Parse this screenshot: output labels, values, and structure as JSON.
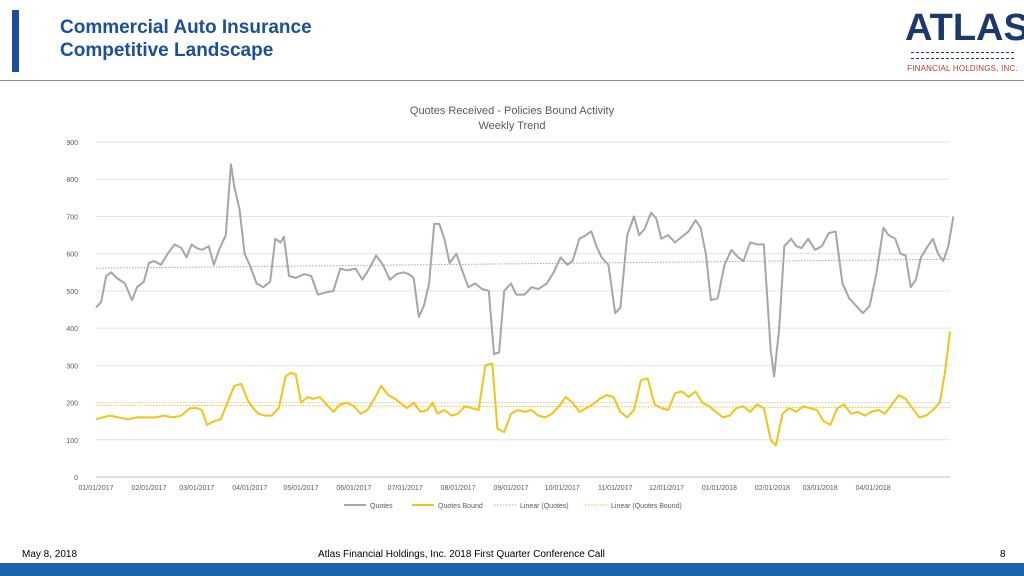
{
  "header": {
    "title_line1": "Commercial Auto Insurance",
    "title_line2": "Competitive Landscape",
    "logo_text": "ATLAS",
    "logo_subtitle": "FINANCIAL HOLDINGS, INC."
  },
  "footer": {
    "date": "May 8, 2018",
    "center": "Atlas Financial Holdings, Inc. 2018 First Quarter Conference Call",
    "page": "8"
  },
  "colors": {
    "accent": "#1b4f9c",
    "quotes": "#a6a6a6",
    "bound": "#f2c318"
  },
  "chart_data": {
    "type": "line",
    "title": "Quotes Received - Policies Bound Activity",
    "subtitle": "Weekly Trend",
    "ylim": [
      0,
      900
    ],
    "yticks": [
      "0",
      "100",
      "200",
      "300",
      "400",
      "500",
      "600",
      "700",
      "800",
      "900"
    ],
    "xlim": [
      "2017-01-01",
      "2018-05-16"
    ],
    "xticks": [
      "01/01/2017",
      "02/01/2017",
      "03/01/2017",
      "04/01/2017",
      "05/01/2017",
      "06/01/2017",
      "07/01/2017",
      "08/01/2017",
      "09/01/2017",
      "10/01/2017",
      "11/01/2017",
      "12/01/2017",
      "01/01/2018",
      "02/01/2018",
      "03/01/2018",
      "04/01/2018"
    ],
    "grid": true,
    "legend_position": "bottom",
    "series": [
      {
        "name": "Quotes",
        "points": [
          [
            "2017-01-01",
            455
          ],
          [
            "2017-01-04",
            470
          ],
          [
            "2017-01-07",
            540
          ],
          [
            "2017-01-10",
            550
          ],
          [
            "2017-01-13",
            535
          ],
          [
            "2017-01-18",
            520
          ],
          [
            "2017-01-22",
            475
          ],
          [
            "2017-01-25",
            510
          ],
          [
            "2017-01-29",
            525
          ],
          [
            "2017-02-01",
            575
          ],
          [
            "2017-02-04",
            580
          ],
          [
            "2017-02-08",
            570
          ],
          [
            "2017-02-12",
            600
          ],
          [
            "2017-02-16",
            625
          ],
          [
            "2017-02-20",
            615
          ],
          [
            "2017-02-23",
            590
          ],
          [
            "2017-02-26",
            625
          ],
          [
            "2017-03-01",
            615
          ],
          [
            "2017-03-04",
            610
          ],
          [
            "2017-03-08",
            620
          ],
          [
            "2017-03-11",
            570
          ],
          [
            "2017-03-14",
            610
          ],
          [
            "2017-03-18",
            650
          ],
          [
            "2017-03-21",
            840
          ],
          [
            "2017-03-23",
            780
          ],
          [
            "2017-03-26",
            720
          ],
          [
            "2017-03-29",
            600
          ],
          [
            "2017-04-01",
            570
          ],
          [
            "2017-04-05",
            520
          ],
          [
            "2017-04-09",
            510
          ],
          [
            "2017-04-13",
            525
          ],
          [
            "2017-04-16",
            640
          ],
          [
            "2017-04-19",
            630
          ],
          [
            "2017-04-21",
            645
          ],
          [
            "2017-04-24",
            540
          ],
          [
            "2017-04-28",
            535
          ],
          [
            "2017-05-03",
            545
          ],
          [
            "2017-05-07",
            540
          ],
          [
            "2017-05-11",
            490
          ],
          [
            "2017-05-15",
            495
          ],
          [
            "2017-05-20",
            500
          ],
          [
            "2017-05-24",
            560
          ],
          [
            "2017-05-28",
            555
          ],
          [
            "2017-06-02",
            560
          ],
          [
            "2017-06-06",
            530
          ],
          [
            "2017-06-10",
            560
          ],
          [
            "2017-06-14",
            595
          ],
          [
            "2017-06-18",
            570
          ],
          [
            "2017-06-22",
            530
          ],
          [
            "2017-06-26",
            545
          ],
          [
            "2017-06-30",
            550
          ],
          [
            "2017-07-03",
            545
          ],
          [
            "2017-07-06",
            535
          ],
          [
            "2017-07-09",
            430
          ],
          [
            "2017-07-12",
            460
          ],
          [
            "2017-07-15",
            520
          ],
          [
            "2017-07-18",
            680
          ],
          [
            "2017-07-21",
            680
          ],
          [
            "2017-07-24",
            640
          ],
          [
            "2017-07-27",
            575
          ],
          [
            "2017-07-31",
            600
          ],
          [
            "2017-08-03",
            560
          ],
          [
            "2017-08-07",
            510
          ],
          [
            "2017-08-11",
            520
          ],
          [
            "2017-08-15",
            505
          ],
          [
            "2017-08-19",
            500
          ],
          [
            "2017-08-22",
            330
          ],
          [
            "2017-08-25",
            335
          ],
          [
            "2017-08-28",
            500
          ],
          [
            "2017-09-01",
            520
          ],
          [
            "2017-09-04",
            490
          ],
          [
            "2017-09-09",
            490
          ],
          [
            "2017-09-13",
            510
          ],
          [
            "2017-09-17",
            505
          ],
          [
            "2017-09-22",
            520
          ],
          [
            "2017-09-26",
            550
          ],
          [
            "2017-09-30",
            590
          ],
          [
            "2017-10-04",
            570
          ],
          [
            "2017-10-07",
            580
          ],
          [
            "2017-10-11",
            640
          ],
          [
            "2017-10-15",
            650
          ],
          [
            "2017-10-18",
            660
          ],
          [
            "2017-10-21",
            620
          ],
          [
            "2017-10-24",
            590
          ],
          [
            "2017-10-28",
            570
          ],
          [
            "2017-11-01",
            440
          ],
          [
            "2017-11-04",
            455
          ],
          [
            "2017-11-08",
            650
          ],
          [
            "2017-11-12",
            700
          ],
          [
            "2017-11-15",
            650
          ],
          [
            "2017-11-18",
            665
          ],
          [
            "2017-11-22",
            710
          ],
          [
            "2017-11-25",
            695
          ],
          [
            "2017-11-28",
            640
          ],
          [
            "2017-12-02",
            650
          ],
          [
            "2017-12-06",
            630
          ],
          [
            "2017-12-10",
            645
          ],
          [
            "2017-12-14",
            660
          ],
          [
            "2017-12-18",
            690
          ],
          [
            "2017-12-21",
            670
          ],
          [
            "2017-12-24",
            600
          ],
          [
            "2017-12-27",
            475
          ],
          [
            "2017-12-31",
            480
          ],
          [
            "2018-01-04",
            570
          ],
          [
            "2018-01-08",
            610
          ],
          [
            "2018-01-12",
            590
          ],
          [
            "2018-01-15",
            580
          ],
          [
            "2018-01-19",
            630
          ],
          [
            "2018-01-23",
            625
          ],
          [
            "2018-01-27",
            625
          ],
          [
            "2018-01-31",
            340
          ],
          [
            "2018-02-02",
            270
          ],
          [
            "2018-02-05",
            400
          ],
          [
            "2018-02-08",
            620
          ],
          [
            "2018-02-12",
            640
          ],
          [
            "2018-02-15",
            620
          ],
          [
            "2018-02-18",
            615
          ],
          [
            "2018-02-22",
            640
          ],
          [
            "2018-02-26",
            610
          ],
          [
            "2018-03-02",
            620
          ],
          [
            "2018-03-06",
            655
          ],
          [
            "2018-03-10",
            660
          ],
          [
            "2018-03-14",
            520
          ],
          [
            "2018-03-18",
            480
          ],
          [
            "2018-03-22",
            460
          ],
          [
            "2018-03-26",
            440
          ],
          [
            "2018-03-30",
            460
          ],
          [
            "2018-04-03",
            550
          ],
          [
            "2018-04-07",
            670
          ],
          [
            "2018-04-10",
            650
          ],
          [
            "2018-04-14",
            640
          ],
          [
            "2018-04-17",
            600
          ],
          [
            "2018-04-20",
            595
          ],
          [
            "2018-04-23",
            510
          ],
          [
            "2018-04-26",
            530
          ],
          [
            "2018-04-29",
            590
          ],
          [
            "2018-05-03",
            620
          ],
          [
            "2018-05-06",
            640
          ],
          [
            "2018-05-09",
            600
          ],
          [
            "2018-05-12",
            580
          ],
          [
            "2018-05-15",
            620
          ],
          [
            "2018-05-18",
            700
          ]
        ]
      },
      {
        "name": "Quotes Bound",
        "points": [
          [
            "2017-01-01",
            155
          ],
          [
            "2017-01-05",
            160
          ],
          [
            "2017-01-09",
            165
          ],
          [
            "2017-01-14",
            160
          ],
          [
            "2017-01-20",
            155
          ],
          [
            "2017-01-25",
            160
          ],
          [
            "2017-01-30",
            160
          ],
          [
            "2017-02-05",
            160
          ],
          [
            "2017-02-10",
            165
          ],
          [
            "2017-02-15",
            160
          ],
          [
            "2017-02-20",
            165
          ],
          [
            "2017-02-25",
            185
          ],
          [
            "2017-03-01",
            185
          ],
          [
            "2017-03-04",
            180
          ],
          [
            "2017-03-07",
            140
          ],
          [
            "2017-03-11",
            150
          ],
          [
            "2017-03-15",
            155
          ],
          [
            "2017-03-19",
            200
          ],
          [
            "2017-03-23",
            245
          ],
          [
            "2017-03-27",
            250
          ],
          [
            "2017-03-31",
            205
          ],
          [
            "2017-04-03",
            185
          ],
          [
            "2017-04-06",
            170
          ],
          [
            "2017-04-10",
            165
          ],
          [
            "2017-04-14",
            165
          ],
          [
            "2017-04-18",
            185
          ],
          [
            "2017-04-22",
            270
          ],
          [
            "2017-04-25",
            280
          ],
          [
            "2017-04-28",
            275
          ],
          [
            "2017-05-01",
            200
          ],
          [
            "2017-05-05",
            215
          ],
          [
            "2017-05-08",
            210
          ],
          [
            "2017-05-12",
            215
          ],
          [
            "2017-05-16",
            195
          ],
          [
            "2017-05-20",
            175
          ],
          [
            "2017-05-24",
            195
          ],
          [
            "2017-05-28",
            200
          ],
          [
            "2017-06-01",
            190
          ],
          [
            "2017-06-05",
            170
          ],
          [
            "2017-06-09",
            180
          ],
          [
            "2017-06-13",
            210
          ],
          [
            "2017-06-17",
            245
          ],
          [
            "2017-06-21",
            220
          ],
          [
            "2017-06-25",
            210
          ],
          [
            "2017-06-28",
            200
          ],
          [
            "2017-07-02",
            185
          ],
          [
            "2017-07-06",
            200
          ],
          [
            "2017-07-10",
            175
          ],
          [
            "2017-07-14",
            180
          ],
          [
            "2017-07-17",
            200
          ],
          [
            "2017-07-20",
            170
          ],
          [
            "2017-07-24",
            180
          ],
          [
            "2017-07-28",
            165
          ],
          [
            "2017-08-01",
            170
          ],
          [
            "2017-08-05",
            190
          ],
          [
            "2017-08-09",
            185
          ],
          [
            "2017-08-13",
            180
          ],
          [
            "2017-08-17",
            300
          ],
          [
            "2017-08-21",
            305
          ],
          [
            "2017-08-24",
            130
          ],
          [
            "2017-08-28",
            120
          ],
          [
            "2017-09-01",
            170
          ],
          [
            "2017-09-05",
            180
          ],
          [
            "2017-09-09",
            175
          ],
          [
            "2017-09-13",
            180
          ],
          [
            "2017-09-17",
            165
          ],
          [
            "2017-09-21",
            160
          ],
          [
            "2017-09-25",
            170
          ],
          [
            "2017-09-29",
            190
          ],
          [
            "2017-10-03",
            215
          ],
          [
            "2017-10-07",
            200
          ],
          [
            "2017-10-11",
            175
          ],
          [
            "2017-10-15",
            185
          ],
          [
            "2017-10-19",
            195
          ],
          [
            "2017-10-23",
            210
          ],
          [
            "2017-10-27",
            220
          ],
          [
            "2017-10-31",
            215
          ],
          [
            "2017-11-04",
            175
          ],
          [
            "2017-11-08",
            160
          ],
          [
            "2017-11-12",
            180
          ],
          [
            "2017-11-16",
            260
          ],
          [
            "2017-11-20",
            265
          ],
          [
            "2017-11-24",
            195
          ],
          [
            "2017-11-28",
            185
          ],
          [
            "2017-12-02",
            180
          ],
          [
            "2017-12-06",
            225
          ],
          [
            "2017-12-10",
            230
          ],
          [
            "2017-12-14",
            215
          ],
          [
            "2017-12-18",
            230
          ],
          [
            "2017-12-22",
            200
          ],
          [
            "2017-12-26",
            190
          ],
          [
            "2017-12-30",
            175
          ],
          [
            "2018-01-03",
            160
          ],
          [
            "2018-01-07",
            165
          ],
          [
            "2018-01-11",
            185
          ],
          [
            "2018-01-15",
            190
          ],
          [
            "2018-01-19",
            175
          ],
          [
            "2018-01-23",
            195
          ],
          [
            "2018-01-27",
            185
          ],
          [
            "2018-01-31",
            100
          ],
          [
            "2018-02-03",
            85
          ],
          [
            "2018-02-07",
            170
          ],
          [
            "2018-02-11",
            185
          ],
          [
            "2018-02-15",
            175
          ],
          [
            "2018-02-19",
            190
          ],
          [
            "2018-02-23",
            185
          ],
          [
            "2018-02-27",
            180
          ],
          [
            "2018-03-03",
            150
          ],
          [
            "2018-03-07",
            140
          ],
          [
            "2018-03-11",
            185
          ],
          [
            "2018-03-15",
            195
          ],
          [
            "2018-03-19",
            170
          ],
          [
            "2018-03-23",
            175
          ],
          [
            "2018-03-27",
            165
          ],
          [
            "2018-03-31",
            175
          ],
          [
            "2018-04-04",
            180
          ],
          [
            "2018-04-08",
            170
          ],
          [
            "2018-04-12",
            195
          ],
          [
            "2018-04-16",
            220
          ],
          [
            "2018-04-20",
            210
          ],
          [
            "2018-04-24",
            185
          ],
          [
            "2018-04-28",
            160
          ],
          [
            "2018-05-02",
            165
          ],
          [
            "2018-05-06",
            180
          ],
          [
            "2018-05-10",
            200
          ],
          [
            "2018-05-13",
            280
          ],
          [
            "2018-05-16",
            390
          ]
        ]
      }
    ],
    "trendlines": [
      {
        "name": "Linear (Quotes)",
        "start": 561,
        "end": 585
      },
      {
        "name": "Linear (Quotes Bound)",
        "start": 193,
        "end": 186
      }
    ]
  }
}
